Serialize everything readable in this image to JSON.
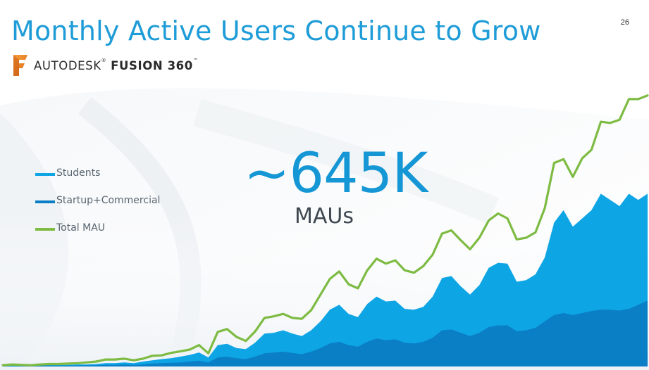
{
  "slide": {
    "title": "Monthly Active Users Continue to Grow",
    "page_number": "26"
  },
  "brand": {
    "name_regular": "AUTODESK",
    "name_bold": "FUSION 360",
    "trademark": "™",
    "registered": "®",
    "logo_letter": "F",
    "logo_icon": "fusion-360-logo-icon"
  },
  "callout": {
    "value": "~645K",
    "unit": "MAUs"
  },
  "colors": {
    "title": "#1e9cd7",
    "students": "#0ea5e5",
    "startup_commercial": "#0a7fc6",
    "total": "#7dbb42",
    "logo_orange": "#f28c1c"
  },
  "chart_data": {
    "type": "area",
    "title": "",
    "xlabel": "",
    "ylabel": "",
    "ylim": [
      0,
      720
    ],
    "legend_position": "left",
    "grid": false,
    "x": [
      1,
      2,
      3,
      4,
      5,
      6,
      7,
      8,
      9,
      10,
      11,
      12,
      13,
      14,
      15,
      16,
      17,
      18,
      19,
      20,
      21,
      22,
      23,
      24,
      25,
      26,
      27,
      28,
      29,
      30,
      31,
      32,
      33,
      34,
      35,
      36,
      37,
      38,
      39,
      40,
      41,
      42,
      43,
      44,
      45,
      46,
      47,
      48,
      49,
      50,
      51,
      52,
      53,
      54,
      55,
      56,
      57,
      58,
      59,
      60,
      61,
      62,
      63,
      64,
      65,
      66,
      67,
      68,
      69,
      70
    ],
    "series": [
      {
        "name": "Total MAU",
        "chart": "line",
        "values": [
          3,
          5,
          4,
          3,
          5,
          6,
          6,
          7,
          8,
          10,
          12,
          17,
          17,
          19,
          15,
          19,
          26,
          27,
          33,
          37,
          41,
          52,
          32,
          84,
          91,
          72,
          62,
          85,
          118,
          122,
          128,
          118,
          116,
          137,
          175,
          213,
          231,
          200,
          190,
          234,
          262,
          250,
          258,
          234,
          228,
          244,
          272,
          323,
          331,
          307,
          285,
          313,
          355,
          372,
          360,
          309,
          313,
          326,
          385,
          495,
          504,
          461,
          506,
          527,
          595,
          592,
          600,
          650,
          650,
          659
        ]
      },
      {
        "name": "Students",
        "chart": "area",
        "values": [
          2,
          3,
          3,
          2,
          3,
          4,
          4,
          4,
          5,
          5,
          6,
          8,
          8,
          10,
          8,
          12,
          15,
          18,
          20,
          24,
          28,
          34,
          22,
          52,
          55,
          45,
          42,
          58,
          80,
          82,
          88,
          80,
          74,
          88,
          110,
          138,
          150,
          128,
          120,
          152,
          170,
          158,
          160,
          140,
          138,
          145,
          170,
          215,
          220,
          195,
          175,
          198,
          240,
          252,
          250,
          206,
          210,
          224,
          265,
          350,
          380,
          340,
          360,
          380,
          420,
          405,
          390,
          420,
          405,
          420
        ]
      },
      {
        "name": "Startup+Commercial",
        "chart": "area",
        "values": [
          1,
          1,
          1,
          1,
          2,
          2,
          2,
          2,
          2,
          3,
          3,
          4,
          4,
          5,
          4,
          5,
          7,
          8,
          9,
          10,
          12,
          14,
          10,
          22,
          24,
          20,
          18,
          24,
          32,
          34,
          36,
          33,
          30,
          36,
          45,
          56,
          60,
          52,
          48,
          60,
          68,
          64,
          66,
          58,
          56,
          60,
          70,
          88,
          90,
          82,
          74,
          82,
          96,
          100,
          100,
          86,
          88,
          94,
          110,
          125,
          130,
          125,
          130,
          135,
          138,
          138,
          136,
          140,
          150,
          160
        ]
      }
    ]
  },
  "legend": {
    "students": "Students",
    "startup_commercial": "Startup+Commercial",
    "total": "Total MAU"
  }
}
